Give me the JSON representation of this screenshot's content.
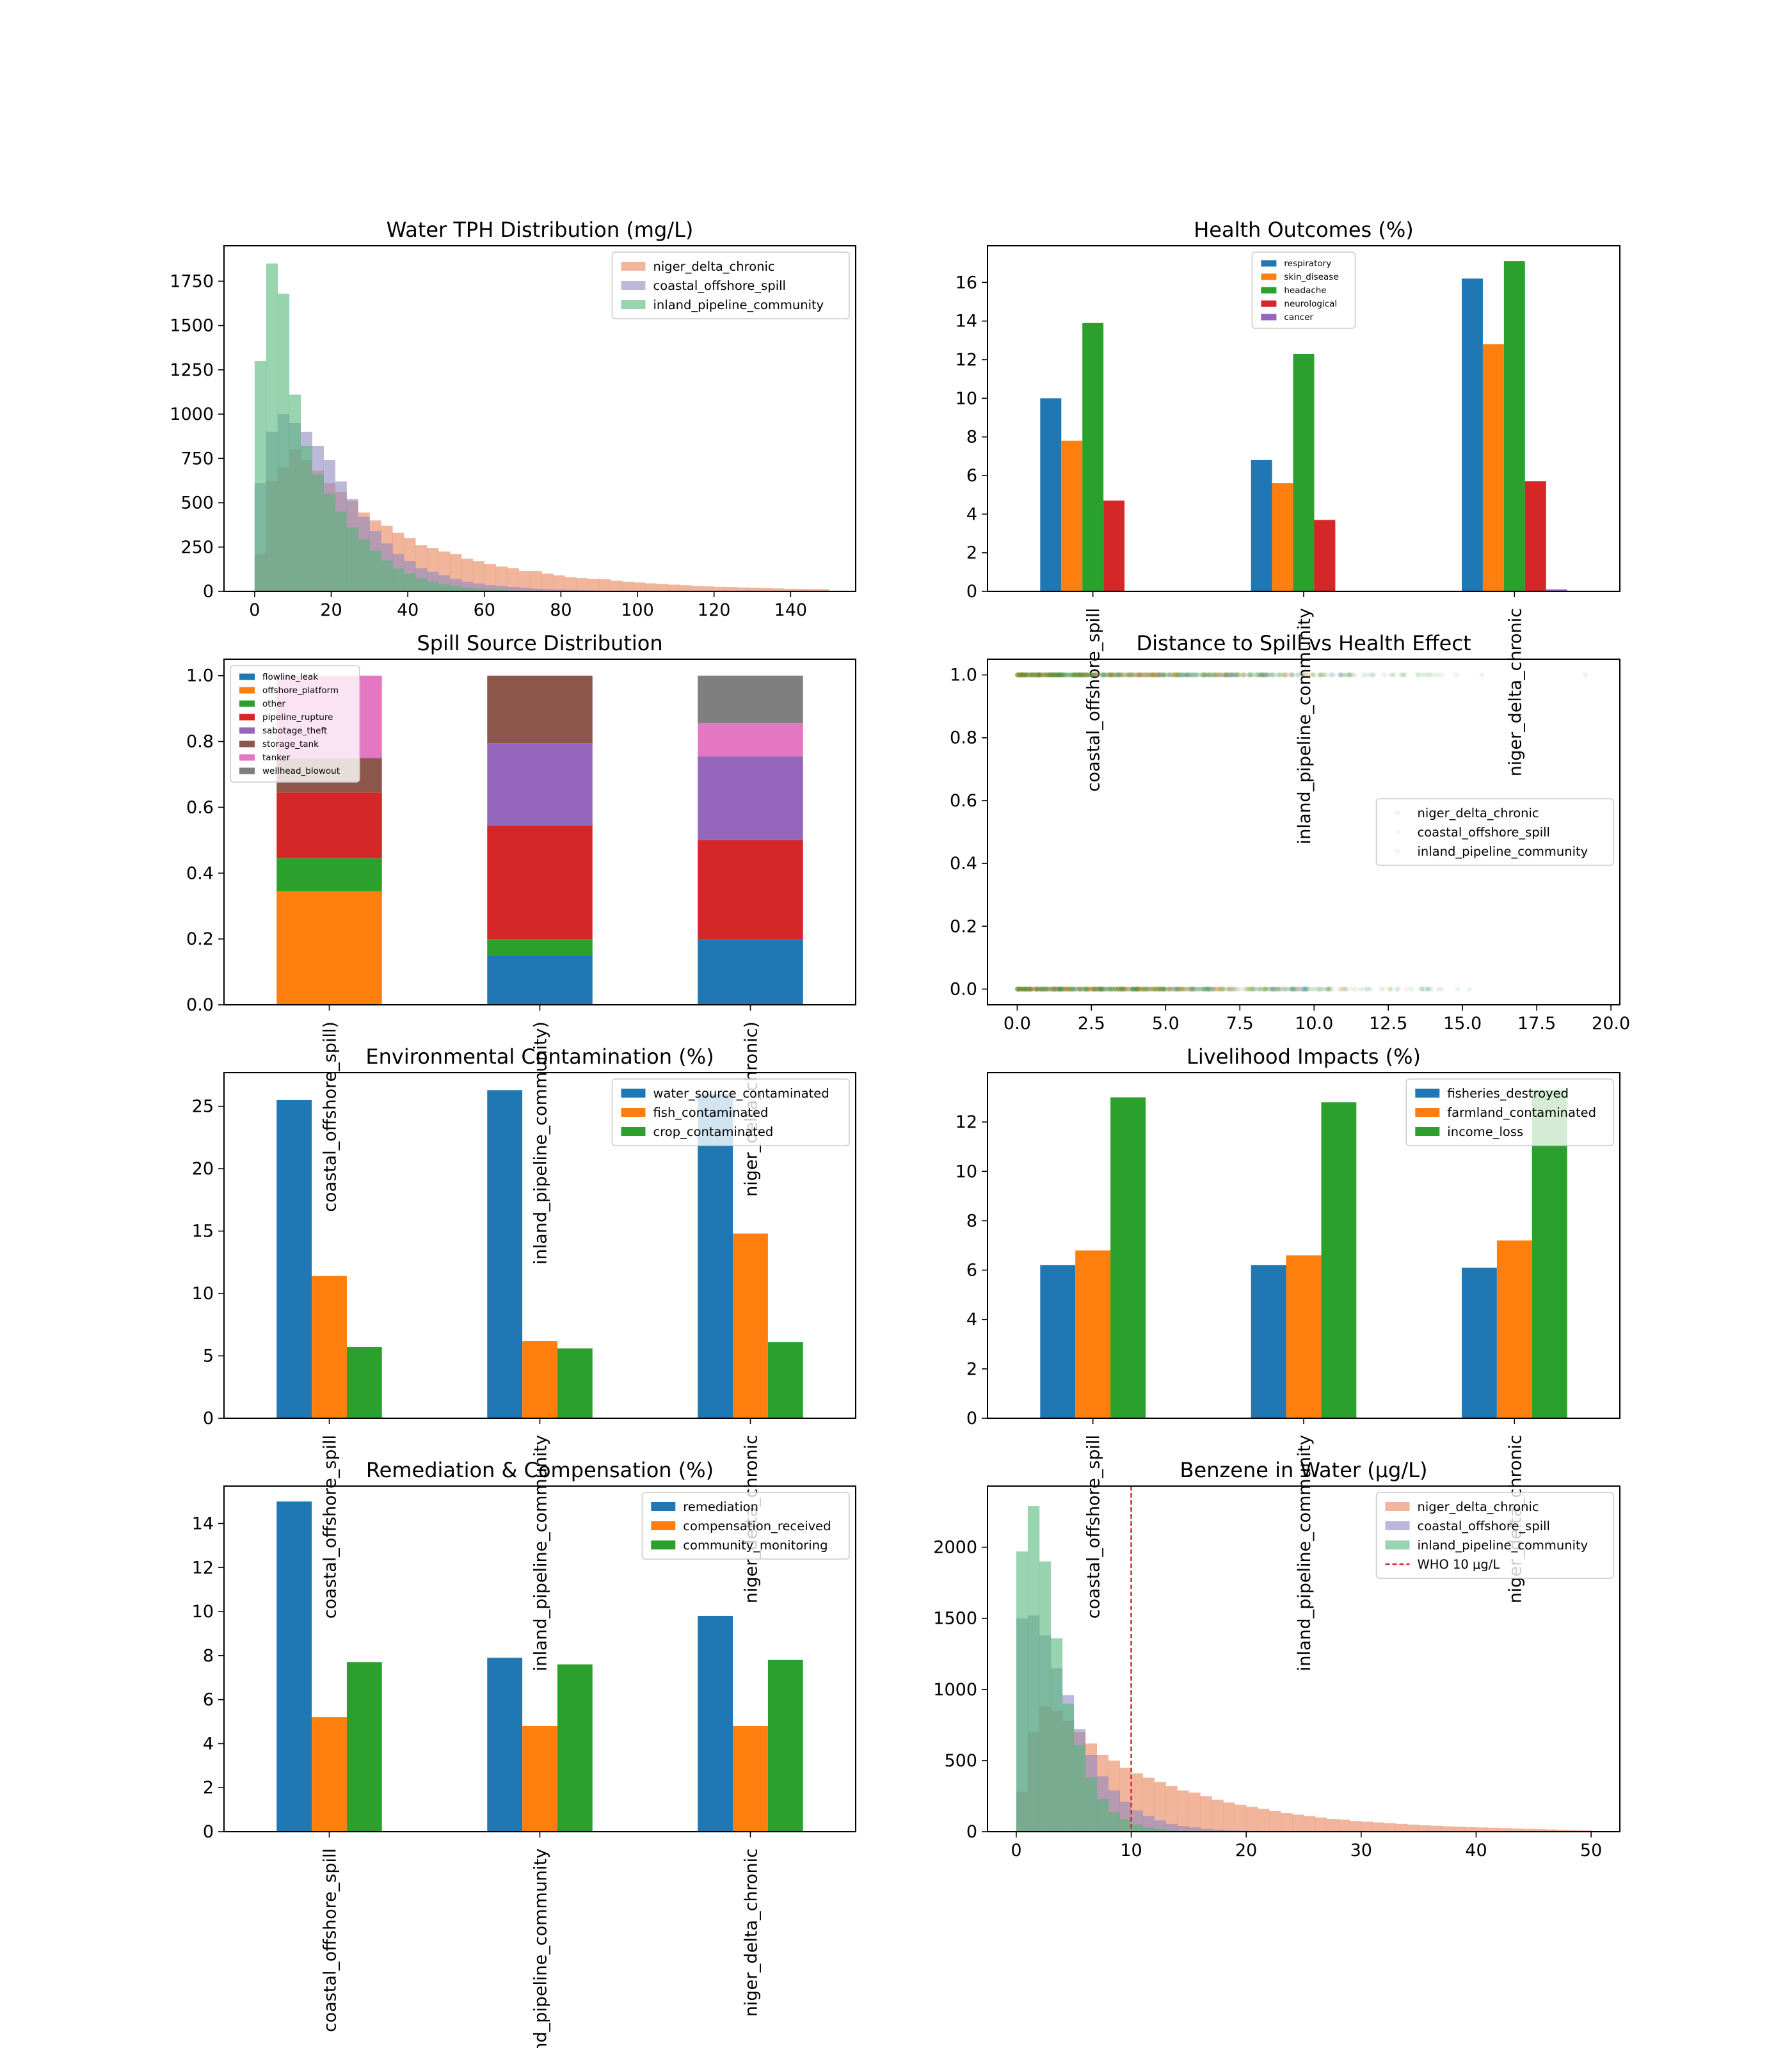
{
  "colors": {
    "tab_blue": "#1f77b4",
    "tab_orange": "#ff7f0e",
    "tab_green": "#2ca02c",
    "tab_red": "#d62728",
    "tab_purple": "#9467bd",
    "tab_brown": "#8c564b",
    "tab_pink": "#e377c2",
    "tab_gray": "#7f7f7f",
    "hist_niger": "#e8835a",
    "hist_coastal": "#8e88c2",
    "hist_inland": "#53b87a",
    "who_line": "#d62728"
  },
  "chart_data": [
    {
      "id": "tph",
      "type": "histogram",
      "title": "Water TPH Distribution (mg/L)",
      "bin_width": 3,
      "xlim": [
        -8,
        157
      ],
      "ylim": [
        0,
        1950
      ],
      "xticks": [
        0,
        20,
        40,
        60,
        80,
        100,
        120,
        140
      ],
      "yticks": [
        0,
        250,
        500,
        750,
        1000,
        1250,
        1500,
        1750
      ],
      "legend": "top-right",
      "series": [
        {
          "name": "niger_delta_chronic",
          "color": "#e8835a",
          "bin_start": 0,
          "values": [
            210,
            620,
            700,
            800,
            740,
            680,
            610,
            560,
            510,
            445,
            400,
            370,
            330,
            300,
            260,
            245,
            225,
            210,
            185,
            170,
            155,
            140,
            130,
            115,
            115,
            100,
            90,
            80,
            75,
            70,
            68,
            60,
            55,
            50,
            45,
            42,
            38,
            35,
            30,
            28,
            26,
            25,
            22,
            20,
            18,
            17,
            15,
            14,
            13,
            12
          ]
        },
        {
          "name": "coastal_offshore_spill",
          "color": "#8e88c2",
          "bin_start": 0,
          "values": [
            610,
            900,
            1000,
            950,
            900,
            820,
            740,
            620,
            520,
            420,
            340,
            270,
            210,
            170,
            130,
            110,
            90,
            70,
            55,
            45,
            35,
            30,
            25,
            20,
            15,
            12,
            10,
            8,
            6,
            5
          ]
        },
        {
          "name": "inland_pipeline_community",
          "color": "#53b87a",
          "bin_start": 0,
          "values": [
            1300,
            1850,
            1680,
            1110,
            820,
            660,
            550,
            450,
            360,
            295,
            230,
            175,
            130,
            100,
            75,
            55,
            40,
            30,
            20,
            15,
            10,
            8,
            5,
            4,
            3
          ]
        }
      ]
    },
    {
      "id": "health",
      "type": "bar",
      "title": "Health Outcomes (%)",
      "categories": [
        "coastal_offshore_spill",
        "inland_pipeline_community",
        "niger_delta_chronic"
      ],
      "ylim": [
        0,
        17.9
      ],
      "yticks": [
        0,
        2,
        4,
        6,
        8,
        10,
        12,
        14,
        16
      ],
      "legend": "top-center",
      "series": [
        {
          "name": "respiratory",
          "color": "#1f77b4",
          "values": [
            10.0,
            6.8,
            16.2
          ]
        },
        {
          "name": "skin_disease",
          "color": "#ff7f0e",
          "values": [
            7.8,
            5.6,
            12.8
          ]
        },
        {
          "name": "headache",
          "color": "#2ca02c",
          "values": [
            13.9,
            12.3,
            17.1
          ]
        },
        {
          "name": "neurological",
          "color": "#d62728",
          "values": [
            4.7,
            3.7,
            5.7
          ]
        },
        {
          "name": "cancer",
          "color": "#9467bd",
          "values": [
            0.02,
            0.02,
            0.1
          ]
        }
      ]
    },
    {
      "id": "source",
      "type": "bar",
      "stacked": true,
      "title": "Spill Source Distribution",
      "categories": [
        "coastal_offshore_spill)",
        "inland_pipeline_community)",
        "niger_delta_chronic)"
      ],
      "ylim": [
        0,
        1.05
      ],
      "yticks": [
        0.0,
        0.2,
        0.4,
        0.6,
        0.8,
        1.0
      ],
      "legend": "top-left",
      "series": [
        {
          "name": "flowline_leak",
          "color": "#1f77b4",
          "values": [
            0,
            0.15,
            0.2
          ]
        },
        {
          "name": "offshore_platform",
          "color": "#ff7f0e",
          "values": [
            0.345,
            0,
            0
          ]
        },
        {
          "name": "other",
          "color": "#2ca02c",
          "values": [
            0.1,
            0.05,
            0
          ]
        },
        {
          "name": "pipeline_rupture",
          "color": "#d62728",
          "values": [
            0.2,
            0.345,
            0.3
          ]
        },
        {
          "name": "sabotage_theft",
          "color": "#9467bd",
          "values": [
            0,
            0.25,
            0.255
          ]
        },
        {
          "name": "storage_tank",
          "color": "#8c564b",
          "values": [
            0.105,
            0.205,
            0
          ]
        },
        {
          "name": "tanker",
          "color": "#e377c2",
          "values": [
            0.25,
            0,
            0.1
          ]
        },
        {
          "name": "wellhead_blowout",
          "color": "#7f7f7f",
          "values": [
            0,
            0,
            0.145
          ]
        }
      ]
    },
    {
      "id": "distance",
      "type": "scatter",
      "title": "Distance to Spill vs Health Effect",
      "xlim": [
        -1,
        20.3
      ],
      "ylim": [
        -0.05,
        1.05
      ],
      "xticks": [
        0.0,
        2.5,
        5.0,
        7.5,
        10.0,
        12.5,
        15.0,
        17.5,
        20.0
      ],
      "yticks": [
        0.0,
        0.2,
        0.4,
        0.6,
        0.8,
        1.0
      ],
      "legend": "center-right",
      "series": [
        {
          "name": "niger_delta_chronic",
          "color": "#1f77b4",
          "y_levels": [
            0,
            1
          ],
          "x_range": [
            0,
            17
          ]
        },
        {
          "name": "coastal_offshore_spill",
          "color": "#ff7f0e",
          "y_levels": [
            0,
            1
          ],
          "x_range": [
            0,
            15
          ]
        },
        {
          "name": "inland_pipeline_community",
          "color": "#2ca02c",
          "y_levels": [
            0,
            1
          ],
          "x_range": [
            0,
            19.3
          ]
        }
      ]
    },
    {
      "id": "env",
      "type": "bar",
      "title": "Environmental Contamination (%)",
      "categories": [
        "coastal_offshore_spill",
        "inland_pipeline_community",
        "niger_delta_chronic"
      ],
      "ylim": [
        0,
        27.7
      ],
      "yticks": [
        0,
        5,
        10,
        15,
        20,
        25
      ],
      "legend": "top-right",
      "series": [
        {
          "name": "water_source_contaminated",
          "color": "#1f77b4",
          "values": [
            25.5,
            26.3,
            26.0
          ]
        },
        {
          "name": "fish_contaminated",
          "color": "#ff7f0e",
          "values": [
            11.4,
            6.2,
            14.8
          ]
        },
        {
          "name": "crop_contaminated",
          "color": "#2ca02c",
          "values": [
            5.7,
            5.6,
            6.1
          ]
        }
      ]
    },
    {
      "id": "livelihood",
      "type": "bar",
      "title": "Livelihood Impacts (%)",
      "categories": [
        "coastal_offshore_spill",
        "inland_pipeline_community",
        "niger_delta_chronic"
      ],
      "ylim": [
        0,
        14.0
      ],
      "yticks": [
        0,
        2,
        4,
        6,
        8,
        10,
        12
      ],
      "legend": "top-right",
      "series": [
        {
          "name": "fisheries_destroyed",
          "color": "#1f77b4",
          "values": [
            6.2,
            6.2,
            6.1
          ]
        },
        {
          "name": "farmland_contaminated",
          "color": "#ff7f0e",
          "values": [
            6.8,
            6.6,
            7.2
          ]
        },
        {
          "name": "income_loss",
          "color": "#2ca02c",
          "values": [
            13.0,
            12.8,
            13.3
          ]
        }
      ]
    },
    {
      "id": "remediation",
      "type": "bar",
      "title": "Remediation & Compensation (%)",
      "categories": [
        "coastal_offshore_spill",
        "inland_pipeline_community",
        "niger_delta_chronic"
      ],
      "ylim": [
        0,
        15.7
      ],
      "yticks": [
        0,
        2,
        4,
        6,
        8,
        10,
        12,
        14
      ],
      "legend": "top-right",
      "series": [
        {
          "name": "remediation",
          "color": "#1f77b4",
          "values": [
            15.0,
            7.9,
            9.8
          ]
        },
        {
          "name": "compensation_received",
          "color": "#ff7f0e",
          "values": [
            5.2,
            4.8,
            4.8
          ]
        },
        {
          "name": "community_monitoring",
          "color": "#2ca02c",
          "values": [
            7.7,
            7.6,
            7.8
          ]
        }
      ]
    },
    {
      "id": "benzene",
      "type": "histogram",
      "title": "Benzene in Water (μg/L)",
      "bin_width": 1,
      "xlim": [
        -2.5,
        52.5
      ],
      "ylim": [
        0,
        2430
      ],
      "xticks": [
        0,
        10,
        20,
        30,
        40,
        50
      ],
      "yticks": [
        0,
        500,
        1000,
        1500,
        2000
      ],
      "legend": "top-right",
      "reference_line": {
        "x": 10,
        "label": "WHO 10 μg/L",
        "color": "#d62728"
      },
      "series": [
        {
          "name": "niger_delta_chronic",
          "color": "#e8835a",
          "bin_start": 0,
          "values": [
            280,
            700,
            880,
            850,
            780,
            700,
            620,
            540,
            500,
            450,
            410,
            380,
            350,
            320,
            290,
            275,
            250,
            225,
            205,
            190,
            175,
            160,
            145,
            130,
            120,
            110,
            100,
            90,
            85,
            75,
            70,
            65,
            60,
            55,
            50,
            45,
            42,
            38,
            35,
            32,
            30,
            28,
            25,
            22,
            20,
            18,
            16,
            14,
            12,
            10
          ]
        },
        {
          "name": "coastal_offshore_spill",
          "color": "#8e88c2",
          "bin_start": 0,
          "values": [
            1500,
            1520,
            1380,
            1150,
            960,
            720,
            540,
            390,
            290,
            210,
            150,
            110,
            80,
            55,
            40,
            30,
            20,
            15,
            10,
            8
          ]
        },
        {
          "name": "inland_pipeline_community",
          "color": "#53b87a",
          "bin_start": 0,
          "values": [
            1970,
            2290,
            1900,
            1360,
            900,
            610,
            380,
            230,
            140,
            85,
            50,
            30,
            18,
            10,
            5
          ]
        }
      ]
    }
  ]
}
